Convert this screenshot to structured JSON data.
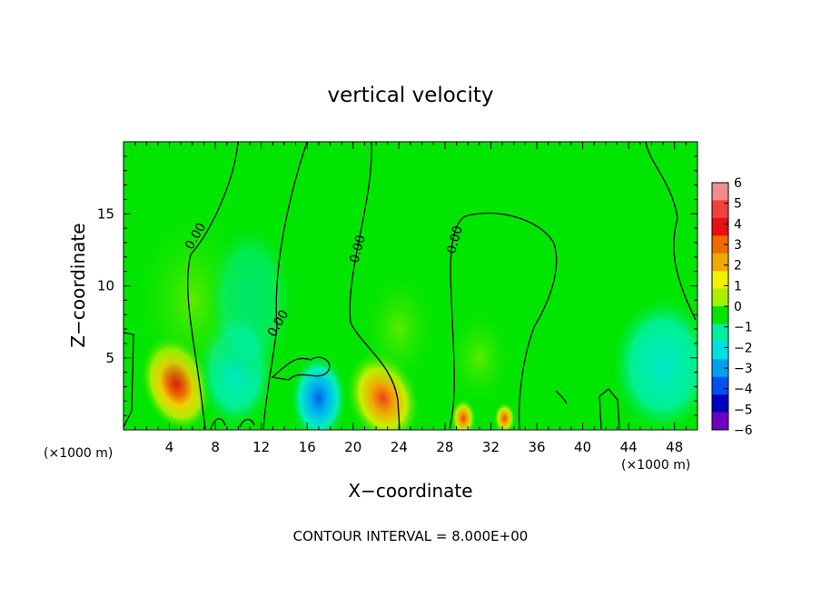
{
  "chart_data": {
    "type": "heatmap",
    "title": "vertical velocity",
    "xlabel": "X−coordinate",
    "ylabel": "Z−coordinate",
    "x_units_left": "(×1000 m)",
    "x_units_right": "(×1000 m)",
    "xlim": [
      0,
      50
    ],
    "ylim": [
      0,
      20
    ],
    "x_ticks": [
      4,
      8,
      12,
      16,
      20,
      24,
      28,
      32,
      36,
      40,
      44,
      48
    ],
    "x_tick_labels": [
      "4",
      "8",
      "12",
      "16",
      "20",
      "24",
      "28",
      "32",
      "36",
      "40",
      "44",
      "48"
    ],
    "y_ticks": [
      5,
      10,
      15
    ],
    "y_tick_labels": [
      "5",
      "10",
      "15"
    ],
    "footer": "CONTOUR INTERVAL = 8.000E+00",
    "contour_label": "0.00",
    "contour_interval": 8.0,
    "colorbar": {
      "levels": [
        6,
        5,
        4,
        3,
        2,
        1,
        0,
        -1,
        -2,
        -3,
        -4,
        -5,
        -6
      ],
      "labels": [
        "6",
        "5",
        "4",
        "3",
        "2",
        "1",
        "0",
        "−1",
        "−2",
        "−3",
        "−4",
        "−5",
        "−6"
      ],
      "colors": [
        "#f08c8c",
        "#f04040",
        "#e81010",
        "#f06a00",
        "#f0a800",
        "#f0f000",
        "#a8f000",
        "#00e600",
        "#00f0a0",
        "#00e0e0",
        "#00a0f0",
        "#0050f0",
        "#0000c0",
        "#7000c0"
      ]
    },
    "features": [
      {
        "x": 4.6,
        "z": 3.2,
        "value": 5.5
      },
      {
        "x": 9.8,
        "z": 4.2,
        "value": -1.5
      },
      {
        "x": 17.0,
        "z": 2.2,
        "value": -2.8
      },
      {
        "x": 22.6,
        "z": 2.2,
        "value": 3.5
      },
      {
        "x": 29.6,
        "z": 0.8,
        "value": 3.5
      },
      {
        "x": 33.2,
        "z": 0.8,
        "value": 3.0
      },
      {
        "x": 47.0,
        "z": 4.5,
        "value": -1.0
      }
    ]
  }
}
